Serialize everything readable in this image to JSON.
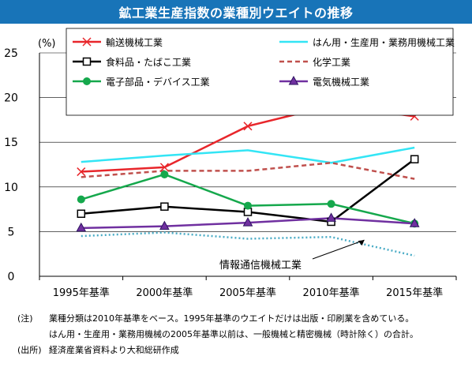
{
  "title": "鉱工業生産指数の業種別ウエイトの推移",
  "chart_data": {
    "type": "line",
    "ylabel": "(%)",
    "ylim": [
      0,
      25
    ],
    "yticks": [
      0,
      5,
      10,
      15,
      20,
      25
    ],
    "categories": [
      "1995年基準",
      "2000年基準",
      "2005年基準",
      "2010年基準",
      "2015年基準"
    ],
    "series": [
      {
        "name": "輸送機械工業",
        "values": [
          11.7,
          12.2,
          16.8,
          19.1,
          17.9
        ],
        "color": "#e8262b",
        "dash": "",
        "marker": "x"
      },
      {
        "name": "はん用・生産用・業務用機械工業",
        "values": [
          12.8,
          13.5,
          14.1,
          12.7,
          14.4
        ],
        "color": "#33e5f5",
        "dash": "",
        "marker": "none"
      },
      {
        "name": "食料品・たばこ工業",
        "values": [
          7.0,
          7.8,
          7.2,
          6.1,
          13.1
        ],
        "color": "#000000",
        "dash": "",
        "marker": "square"
      },
      {
        "name": "化学工業",
        "values": [
          11.1,
          11.8,
          11.8,
          12.7,
          10.9
        ],
        "color": "#c0504d",
        "dash": "6,4",
        "marker": "none"
      },
      {
        "name": "電子部品・デバイス工業",
        "values": [
          8.6,
          11.4,
          7.9,
          8.1,
          5.9
        ],
        "color": "#15a84c",
        "dash": "",
        "marker": "circle"
      },
      {
        "name": "電気機械工業",
        "values": [
          5.4,
          5.6,
          6.0,
          6.5,
          5.9
        ],
        "color": "#7030a0",
        "dash": "",
        "marker": "triangle"
      },
      {
        "name": "情報通信機械工業",
        "values": [
          4.5,
          4.9,
          4.2,
          4.4,
          2.3
        ],
        "color": "#4bacc6",
        "dash": "2,3",
        "marker": "none",
        "legend": false
      }
    ],
    "annotation": "情報通信機械工業"
  },
  "notes": {
    "note_tag": "(注)",
    "note_line1": "業種分類は2010年基準をベース。1995年基準のウエイトだけは出版・印刷業を含めている。",
    "note_line2": "はん用・生産用・業務用機械の2005年基準以前は、一般機械と精密機械（時計除く）の合計。",
    "source_tag": "(出所)",
    "source_text": "経済産業省資料より大和総研作成"
  }
}
